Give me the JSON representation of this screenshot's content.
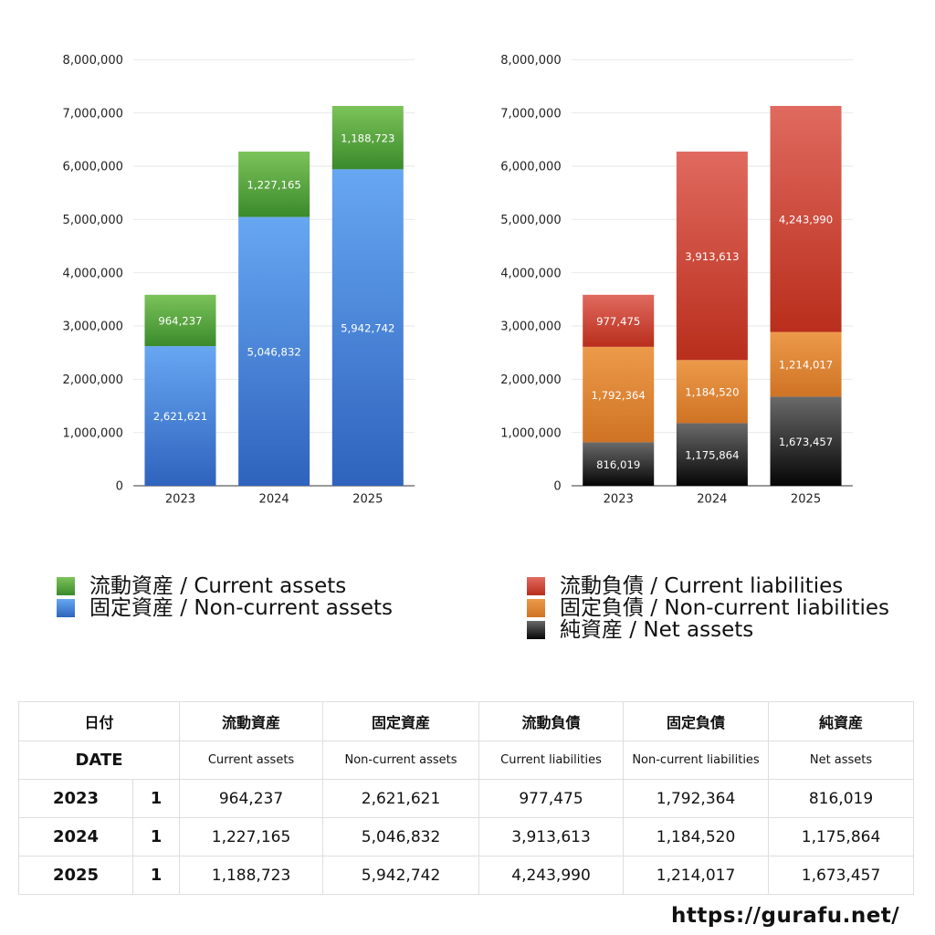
{
  "chart_data": [
    {
      "type": "bar",
      "stacked": true,
      "categories": [
        "2023",
        "2024",
        "2025"
      ],
      "series": [
        {
          "name": "固定資産 / Non-current assets",
          "values": [
            2621621,
            5046832,
            5942742
          ],
          "color": "#4a8ee0"
        },
        {
          "name": "流動資産 / Current assets",
          "values": [
            964237,
            1227165,
            1188723
          ],
          "color": "#4fa13a"
        }
      ],
      "data_labels": {
        "固定資産 / Non-current assets": [
          "2,621,621",
          "5,046,832",
          "5,942,742"
        ],
        "流動資産 / Current assets": [
          "964,237",
          "1,227,165",
          "1,188,723"
        ]
      },
      "ylim": [
        0,
        8000000
      ],
      "yticks": [
        "0",
        "1,000,000",
        "2,000,000",
        "3,000,000",
        "4,000,000",
        "5,000,000",
        "6,000,000",
        "7,000,000",
        "8,000,000"
      ],
      "grid": true,
      "legend_position": "bottom"
    },
    {
      "type": "bar",
      "stacked": true,
      "categories": [
        "2023",
        "2024",
        "2025"
      ],
      "series": [
        {
          "name": "純資産 / Net assets",
          "values": [
            816019,
            1175864,
            1673457
          ],
          "color": "#2a2a2a"
        },
        {
          "name": "固定負債 / Non-current liabilities",
          "values": [
            1792364,
            1184520,
            1214017
          ],
          "color": "#e08a35"
        },
        {
          "name": "流動負債 / Current liabilities",
          "values": [
            977475,
            3913613,
            4243990
          ],
          "color": "#d4483a"
        }
      ],
      "data_labels": {
        "純資産 / Net assets": [
          "816,019",
          "1,175,864",
          "1,673,457"
        ],
        "固定負債 / Non-current liabilities": [
          "1,792,364",
          "1,184,520",
          "1,214,017"
        ],
        "流動負債 / Current liabilities": [
          "977,475",
          "3,913,613",
          "4,243,990"
        ]
      },
      "ylim": [
        0,
        8000000
      ],
      "yticks": [
        "0",
        "1,000,000",
        "2,000,000",
        "3,000,000",
        "4,000,000",
        "5,000,000",
        "6,000,000",
        "7,000,000",
        "8,000,000"
      ],
      "grid": true,
      "legend_position": "bottom"
    }
  ],
  "legend_left": [
    {
      "label": "流動資産 / Current assets",
      "color": "#4fa13a"
    },
    {
      "label": "固定資産 / Non-current assets",
      "color": "#4a8ee0"
    }
  ],
  "legend_right": [
    {
      "label": "流動負債 / Current liabilities",
      "color": "#d4483a"
    },
    {
      "label": "固定負債 / Non-current liabilities",
      "color": "#e08a35"
    },
    {
      "label": "純資産 / Net assets",
      "color": "#2a2a2a"
    }
  ],
  "table": {
    "header_jp": {
      "date": "日付",
      "c1": "流動資産",
      "c2": "固定資産",
      "c3": "流動負債",
      "c4": "固定負債",
      "c5": "純資産"
    },
    "header_en": {
      "date": "DATE",
      "c1": "Current assets",
      "c2": "Non-current assets",
      "c3": "Current liabilities",
      "c4": "Non-current liabilities",
      "c5": "Net assets"
    },
    "rows": [
      {
        "year": "2023",
        "q": "1",
        "c1": "964,237",
        "c2": "2,621,621",
        "c3": "977,475",
        "c4": "1,792,364",
        "c5": "816,019"
      },
      {
        "year": "2024",
        "q": "1",
        "c1": "1,227,165",
        "c2": "5,046,832",
        "c3": "3,913,613",
        "c4": "1,184,520",
        "c5": "1,175,864"
      },
      {
        "year": "2025",
        "q": "1",
        "c1": "1,188,723",
        "c2": "5,942,742",
        "c3": "4,243,990",
        "c4": "1,214,017",
        "c5": "1,673,457"
      }
    ]
  },
  "footer": {
    "url": "https://gurafu.net/"
  }
}
